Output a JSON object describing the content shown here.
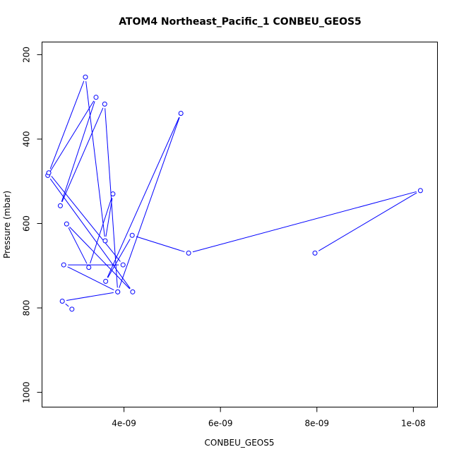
{
  "chart_data": {
    "type": "line",
    "title": "ATOM4 Northeast_Pacific_1 CONBEU_GEOS5",
    "xlabel": "CONBEU_GEOS5",
    "ylabel": "Pressure (mbar)",
    "xlim": [
      2.3e-09,
      1.05e-08
    ],
    "ylim": [
      1035,
      170
    ],
    "y_reversed": true,
    "x_ticks": [
      {
        "value": 4e-09,
        "label": "4e-09"
      },
      {
        "value": 6e-09,
        "label": "6e-09"
      },
      {
        "value": 8e-09,
        "label": "8e-09"
      },
      {
        "value": 1e-08,
        "label": "1e-08"
      }
    ],
    "y_ticks": [
      {
        "value": 200,
        "label": "200"
      },
      {
        "value": 400,
        "label": "400"
      },
      {
        "value": 600,
        "label": "600"
      },
      {
        "value": 800,
        "label": "800"
      },
      {
        "value": 1000,
        "label": "1000"
      }
    ],
    "grid": false,
    "legend": "none",
    "color": "#0000ff",
    "series": [
      {
        "points": [
          {
            "x": 7.96e-09,
            "y": 670
          },
          {
            "x": 1.0147e-08,
            "y": 522
          },
          {
            "x": 5.34e-09,
            "y": 670
          },
          {
            "x": 4.17e-09,
            "y": 628
          },
          {
            "x": 3.62e-09,
            "y": 737
          },
          {
            "x": 5.18e-09,
            "y": 339
          },
          {
            "x": 3.87e-09,
            "y": 762
          },
          {
            "x": 3.6e-09,
            "y": 317
          },
          {
            "x": 2.68e-09,
            "y": 558
          },
          {
            "x": 3.42e-09,
            "y": 301
          },
          {
            "x": 2.42e-09,
            "y": 486
          },
          {
            "x": 4.18e-09,
            "y": 762
          },
          {
            "x": 2.81e-09,
            "y": 601
          },
          {
            "x": 3.27e-09,
            "y": 704
          },
          {
            "x": 3.77e-09,
            "y": 530
          },
          {
            "x": 3.61e-09,
            "y": 641
          },
          {
            "x": 3.2e-09,
            "y": 253
          },
          {
            "x": 2.44e-09,
            "y": 480
          },
          {
            "x": 3.98e-09,
            "y": 698
          },
          {
            "x": 2.75e-09,
            "y": 698
          },
          {
            "x": 3.87e-09,
            "y": 762
          },
          {
            "x": 2.72e-09,
            "y": 784
          },
          {
            "x": 2.92e-09,
            "y": 803
          }
        ]
      }
    ]
  }
}
